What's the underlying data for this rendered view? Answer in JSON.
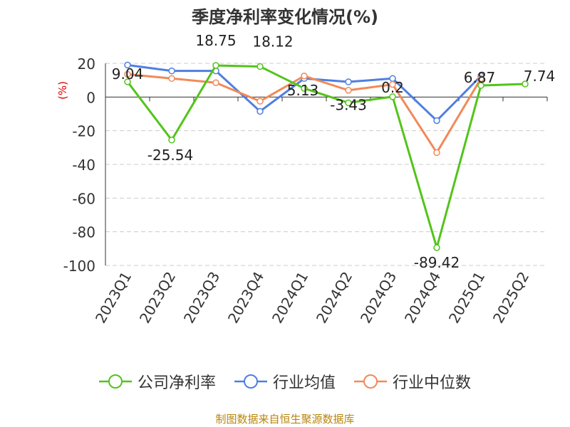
{
  "title": "季度净利率变化情况(%)",
  "source": "制图数据来自恒生聚源数据库",
  "chart_data": {
    "type": "line",
    "title": "季度净利率变化情况(%)",
    "ylabel": "(%)",
    "ylim": [
      -100,
      20
    ],
    "yticks": [
      "20",
      "0",
      "-20",
      "-40",
      "-60",
      "-80",
      "-100"
    ],
    "categories": [
      "2023Q1",
      "2023Q2",
      "2023Q3",
      "2023Q4",
      "2024Q1",
      "2024Q2",
      "2024Q3",
      "2024Q4",
      "2025Q1",
      "2025Q2"
    ],
    "grid": true,
    "legend_position": "bottom",
    "series": [
      {
        "name": "公司净利率",
        "color": "#52c41a",
        "values": [
          9.04,
          -25.54,
          18.75,
          18.12,
          5.13,
          -3.43,
          0.2,
          -89.42,
          6.87,
          7.74
        ],
        "labels": [
          "9.04",
          "-25.54",
          "18.75",
          "18.12",
          "5.13",
          "-3.43",
          "0.2",
          "-89.42",
          "6.87",
          "7.74"
        ]
      },
      {
        "name": "行业均值",
        "color": "#4f7fe0",
        "values": [
          19,
          15.5,
          15.5,
          -8.5,
          11,
          9,
          11,
          -14,
          12.5,
          null
        ]
      },
      {
        "name": "行业中位数",
        "color": "#f08a5a",
        "values": [
          13.5,
          11,
          8.5,
          -2.5,
          12.5,
          4,
          7.5,
          -33,
          11,
          null
        ]
      }
    ]
  }
}
